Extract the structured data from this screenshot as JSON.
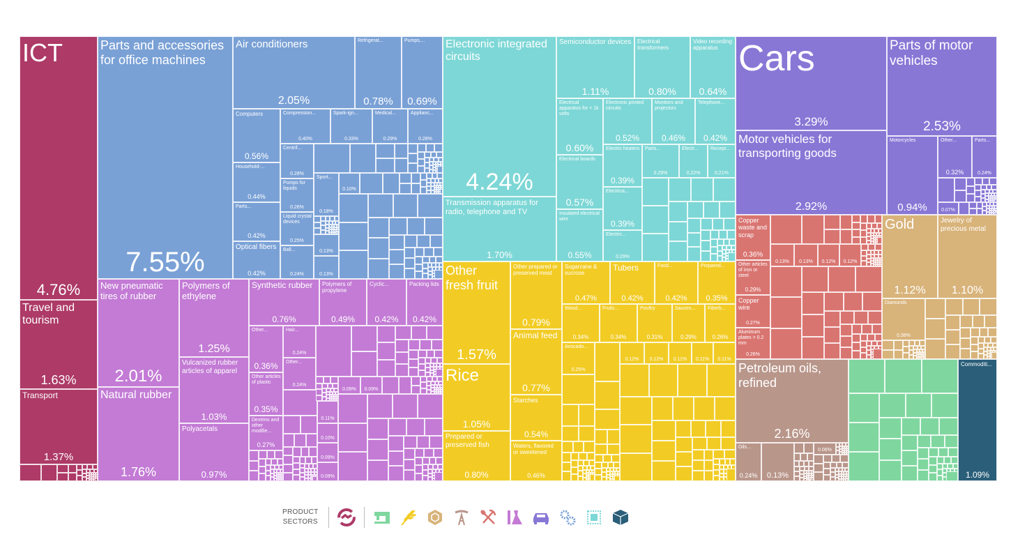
{
  "chart_data": {
    "type": "treemap",
    "unit": "percent share",
    "sectors": [
      {
        "icon": "handshake-icon",
        "color": "#ad3a67",
        "tiles": [
          {
            "label": "ICT",
            "value": "4.76%"
          },
          {
            "label": "Travel and tourism",
            "value": "1.63%"
          },
          {
            "label": "Transport",
            "value": "1.37%"
          }
        ]
      },
      {
        "icon": "gears-icon",
        "color": "#7aa1d6",
        "tiles": [
          {
            "label": "Parts and accessories for office machines",
            "value": "7.55%"
          },
          {
            "label": "Air conditioners",
            "value": "2.05%"
          },
          {
            "label": "Refrigerat...",
            "value": "0.78%"
          },
          {
            "label": "Pumps,...",
            "value": "0.69%"
          },
          {
            "label": "Computers",
            "value": "0.56%"
          },
          {
            "label": "Household-...",
            "value": "0.44%"
          },
          {
            "label": "Parts...",
            "value": "0.42%"
          },
          {
            "label": "Optical fibers",
            "value": "0.42%"
          },
          {
            "label": "Compression...",
            "value": "0.40%"
          },
          {
            "label": "Spark-ign...",
            "value": "0.33%"
          },
          {
            "label": "Medical...",
            "value": "0.29%"
          },
          {
            "label": "Applianc...",
            "value": "0.28%"
          },
          {
            "label": "Centrif...",
            "value": "0.28%"
          },
          {
            "label": "Pumps for liquids",
            "value": "0.26%"
          },
          {
            "label": "Liquid crystal devices",
            "value": "0.25%"
          },
          {
            "label": "Ball...",
            "value": "0.24%"
          },
          {
            "label": "Sport...",
            "value": "0.18%"
          },
          {
            "label": "",
            "value": "0.13%"
          },
          {
            "label": "",
            "value": "0.13%"
          },
          {
            "label": "",
            "value": "0.10%"
          }
        ]
      },
      {
        "icon": "chip-icon",
        "color": "#7dd7d6",
        "tiles": [
          {
            "label": "Electronic integrated circuits",
            "value": "4.24%"
          },
          {
            "label": "Transmission apparatus for radio, telephone and TV",
            "value": "1.70%"
          },
          {
            "label": "Semiconductor devices",
            "value": "1.11%"
          },
          {
            "label": "Electrical transformers",
            "value": "0.80%"
          },
          {
            "label": "Video recording apparatus",
            "value": "0.64%"
          },
          {
            "label": "Electrical apparatus for < 1k volts",
            "value": "0.60%"
          },
          {
            "label": "Electrical boards",
            "value": "0.57%"
          },
          {
            "label": "Insulated electrical wire",
            "value": "0.55%"
          },
          {
            "label": "Electronic printed circuits",
            "value": "0.52%"
          },
          {
            "label": "Monitors and projectors",
            "value": "0.46%"
          },
          {
            "label": "Telephone...",
            "value": "0.42%"
          },
          {
            "label": "Electric heaters",
            "value": "0.39%"
          },
          {
            "label": "Electrica...",
            "value": "0.39%"
          },
          {
            "label": "Electric...",
            "value": "0.29%"
          },
          {
            "label": "Parts...",
            "value": "0.29%"
          },
          {
            "label": "Electr...",
            "value": "0.22%"
          },
          {
            "label": "Recept...",
            "value": "0.21%"
          }
        ]
      },
      {
        "icon": "flask-icon",
        "color": "#c37bd5",
        "tiles": [
          {
            "label": "New pneumatic tires of rubber",
            "value": "2.01%"
          },
          {
            "label": "Natural rubber",
            "value": "1.76%"
          },
          {
            "label": "Polymers of ethylene",
            "value": "1.25%"
          },
          {
            "label": "Vulcanized rubber articles of apparel",
            "value": "1.03%"
          },
          {
            "label": "Polyacetals",
            "value": "0.97%"
          },
          {
            "label": "Synthetic rubber",
            "value": "0.76%"
          },
          {
            "label": "Polymers of propylene",
            "value": "0.49%"
          },
          {
            "label": "Cyclic...",
            "value": "0.42%"
          },
          {
            "label": "Packing lids",
            "value": "0.42%"
          },
          {
            "label": "Other...",
            "value": "0.36%"
          },
          {
            "label": "Other articles of plastic",
            "value": "0.35%"
          },
          {
            "label": "Dextrins and other modifie...",
            "value": "0.27%"
          },
          {
            "label": "Hair...",
            "value": "0.24%"
          },
          {
            "label": "Other...",
            "value": "0.24%"
          },
          {
            "label": "",
            "value": "0.11%"
          },
          {
            "label": "",
            "value": "0.10%"
          },
          {
            "label": "",
            "value": "0.09%"
          },
          {
            "label": "",
            "value": "0.09%"
          },
          {
            "label": "",
            "value": "0.09%"
          },
          {
            "label": "",
            "value": "0.09%"
          }
        ]
      },
      {
        "icon": "wheat-icon",
        "color": "#f2cc25",
        "tiles": [
          {
            "label": "Other fresh fruit",
            "value": "1.57%"
          },
          {
            "label": "Rice",
            "value": "1.05%"
          },
          {
            "label": "Prepared or preserved fish",
            "value": "0.80%"
          },
          {
            "label": "Other prepared or preserved meat",
            "value": "0.79%"
          },
          {
            "label": "Animal feed",
            "value": "0.77%"
          },
          {
            "label": "Starches",
            "value": "0.54%"
          },
          {
            "label": "Waters, flavored or sweetened",
            "value": "0.46%"
          },
          {
            "label": "Sugarcane & sucrose",
            "value": "0.47%"
          },
          {
            "label": "Tubers",
            "value": "0.42%"
          },
          {
            "label": "Food...",
            "value": "0.42%"
          },
          {
            "label": "Prepared...",
            "value": "0.35%"
          },
          {
            "label": "Wood...",
            "value": "0.34%"
          },
          {
            "label": "Fruits...",
            "value": "0.34%"
          },
          {
            "label": "Poultry",
            "value": "0.31%"
          },
          {
            "label": "Sauces...",
            "value": "0.29%"
          },
          {
            "label": "Fiberb...",
            "value": "0.26%"
          },
          {
            "label": "Avocado...",
            "value": "0.25%"
          },
          {
            "label": "",
            "value": "0.12%"
          },
          {
            "label": "",
            "value": "0.12%"
          },
          {
            "label": "",
            "value": "0.11%"
          },
          {
            "label": "",
            "value": "0.11%"
          },
          {
            "label": "",
            "value": "0.11%"
          }
        ]
      },
      {
        "icon": "car-icon",
        "color": "#8977d6",
        "tiles": [
          {
            "label": "Cars",
            "value": "3.29%"
          },
          {
            "label": "Motor vehicles for transporting goods",
            "value": "2.92%"
          },
          {
            "label": "Parts of motor vehicles",
            "value": "2.53%"
          },
          {
            "label": "Motorcycles",
            "value": "0.94%"
          },
          {
            "label": "Other...",
            "value": "0.32%"
          },
          {
            "label": "Parts...",
            "value": "0.24%"
          },
          {
            "label": "",
            "value": "0.07%"
          }
        ]
      },
      {
        "icon": "pick-shovel-icon",
        "color": "#d97571",
        "tiles": [
          {
            "label": "Copper waste and scrap",
            "value": "0.36%"
          },
          {
            "label": "Other articles of iron or steel",
            "value": "0.29%"
          },
          {
            "label": "Copper wire",
            "value": "0.27%"
          },
          {
            "label": "Aluminum plates > 0.2 mm",
            "value": "0.26%"
          },
          {
            "label": "",
            "value": "0.13%"
          },
          {
            "label": "",
            "value": "0.13%"
          },
          {
            "label": "",
            "value": "0.12%"
          },
          {
            "label": "",
            "value": "0.12%"
          }
        ]
      },
      {
        "icon": "gem-icon",
        "color": "#d8b37a",
        "tiles": [
          {
            "label": "Gold",
            "value": "1.12%"
          },
          {
            "label": "Jewelry of precious metal",
            "value": "1.10%"
          },
          {
            "label": "Diamonds",
            "value": "0.38%"
          }
        ]
      },
      {
        "icon": "oil-rig-icon",
        "color": "#b9968a",
        "tiles": [
          {
            "label": "Petroleum oils, refined",
            "value": "2.16%"
          },
          {
            "label": "Oils...",
            "value": "0.24%"
          },
          {
            "label": "",
            "value": "0.13%"
          },
          {
            "label": "",
            "value": "0.06%"
          }
        ]
      },
      {
        "icon": "sewing-machine-icon",
        "color": "#7fd79f",
        "tiles": []
      },
      {
        "icon": "box-icon",
        "color": "#2a5e79",
        "tiles": [
          {
            "label": "Commoditi...",
            "value": "1.09%"
          }
        ]
      }
    ]
  },
  "legend": {
    "title_line1": "PRODUCT",
    "title_line2": "SECTORS"
  }
}
